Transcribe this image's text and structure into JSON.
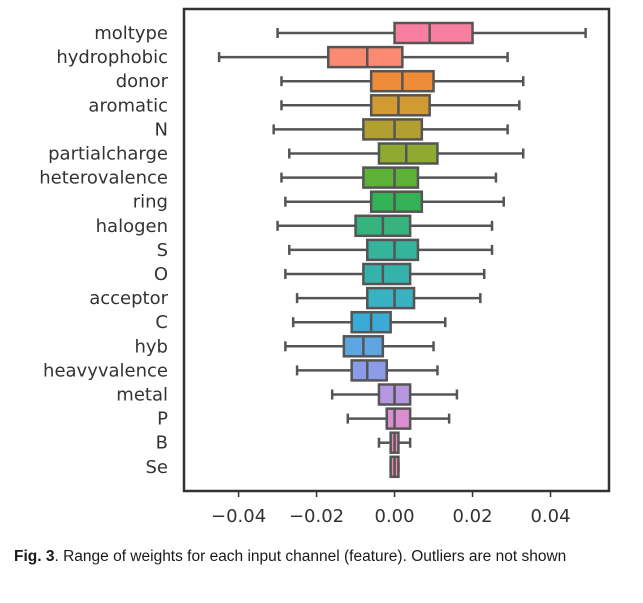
{
  "chart_data": {
    "type": "boxplot",
    "orientation": "horizontal",
    "xticks": [
      -0.04,
      -0.02,
      0.0,
      0.02,
      0.04
    ],
    "xtick_labels": [
      "−0.04",
      "−0.02",
      "0.00",
      "0.02",
      "0.04"
    ],
    "xlim": [
      -0.054,
      0.055
    ],
    "grid": false,
    "categories": [
      {
        "name": "moltype",
        "whisker_low": -0.03,
        "q1": 0.0,
        "median": 0.009,
        "q3": 0.02,
        "whisker_high": 0.049,
        "color": "#f77fa0"
      },
      {
        "name": "hydrophobic",
        "whisker_low": -0.045,
        "q1": -0.017,
        "median": -0.007,
        "q3": 0.002,
        "whisker_high": 0.029,
        "color": "#fb8a73"
      },
      {
        "name": "donor",
        "whisker_low": -0.029,
        "q1": -0.006,
        "median": 0.002,
        "q3": 0.01,
        "whisker_high": 0.033,
        "color": "#ee8c37"
      },
      {
        "name": "aromatic",
        "whisker_low": -0.029,
        "q1": -0.006,
        "median": 0.001,
        "q3": 0.009,
        "whisker_high": 0.032,
        "color": "#d29a32"
      },
      {
        "name": "N",
        "whisker_low": -0.031,
        "q1": -0.008,
        "median": 0.0,
        "q3": 0.007,
        "whisker_high": 0.029,
        "color": "#b1a031"
      },
      {
        "name": "partialcharge",
        "whisker_low": -0.027,
        "q1": -0.004,
        "median": 0.003,
        "q3": 0.011,
        "whisker_high": 0.033,
        "color": "#8eaa31"
      },
      {
        "name": "heterovalence",
        "whisker_low": -0.029,
        "q1": -0.008,
        "median": 0.0,
        "q3": 0.006,
        "whisker_high": 0.026,
        "color": "#5cb236"
      },
      {
        "name": "ring",
        "whisker_low": -0.028,
        "q1": -0.006,
        "median": 0.0,
        "q3": 0.007,
        "whisker_high": 0.028,
        "color": "#34b255"
      },
      {
        "name": "halogen",
        "whisker_low": -0.03,
        "q1": -0.01,
        "median": -0.003,
        "q3": 0.004,
        "whisker_high": 0.025,
        "color": "#36b37e"
      },
      {
        "name": "S",
        "whisker_low": -0.027,
        "q1": -0.007,
        "median": 0.0,
        "q3": 0.006,
        "whisker_high": 0.025,
        "color": "#36b39b"
      },
      {
        "name": "O",
        "whisker_low": -0.028,
        "q1": -0.008,
        "median": -0.003,
        "q3": 0.004,
        "whisker_high": 0.023,
        "color": "#36b2ad"
      },
      {
        "name": "acceptor",
        "whisker_low": -0.025,
        "q1": -0.007,
        "median": 0.0,
        "q3": 0.005,
        "whisker_high": 0.022,
        "color": "#38b2c1"
      },
      {
        "name": "C",
        "whisker_low": -0.026,
        "q1": -0.011,
        "median": -0.006,
        "q3": -0.001,
        "whisker_high": 0.013,
        "color": "#3aaad6"
      },
      {
        "name": "hyb",
        "whisker_low": -0.028,
        "q1": -0.013,
        "median": -0.008,
        "q3": -0.003,
        "whisker_high": 0.01,
        "color": "#5ea5e4"
      },
      {
        "name": "heavyvalence",
        "whisker_low": -0.025,
        "q1": -0.011,
        "median": -0.007,
        "q3": -0.002,
        "whisker_high": 0.011,
        "color": "#8c9be8"
      },
      {
        "name": "metal",
        "whisker_low": -0.016,
        "q1": -0.004,
        "median": 0.0,
        "q3": 0.004,
        "whisker_high": 0.016,
        "color": "#b796e0"
      },
      {
        "name": "P",
        "whisker_low": -0.012,
        "q1": -0.002,
        "median": 0.0,
        "q3": 0.004,
        "whisker_high": 0.014,
        "color": "#db8ed1"
      },
      {
        "name": "B",
        "whisker_low": -0.004,
        "q1": -0.001,
        "median": 0.0,
        "q3": 0.001,
        "whisker_high": 0.004,
        "color": "#e98bbd"
      },
      {
        "name": "Se",
        "whisker_low": -0.001,
        "q1": -0.001,
        "median": 0.0,
        "q3": 0.001,
        "whisker_high": 0.001,
        "color": "#ef87b0"
      }
    ]
  },
  "caption": {
    "label": "Fig. 3",
    "text": ". Range of weights for each input channel (feature). Outliers are not shown"
  }
}
